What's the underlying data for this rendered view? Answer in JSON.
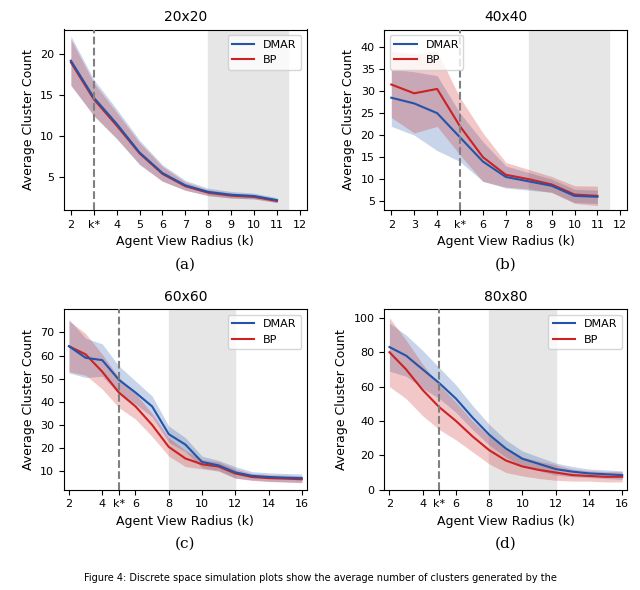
{
  "chart_data": [
    {
      "type": "line",
      "title": "20x20",
      "label": "(a)",
      "x_label": "Agent View Radius (k)",
      "y_label": "Average Cluster Count",
      "x": [
        2,
        3,
        4,
        5,
        6,
        7,
        8,
        9,
        10,
        11
      ],
      "series": [
        {
          "name": "DMAR",
          "color": "#2255aa",
          "values": [
            19.2,
            14.7,
            11.5,
            8.0,
            5.5,
            4.0,
            3.2,
            2.85,
            2.7,
            2.2
          ],
          "std": [
            3.0,
            2.2,
            1.8,
            1.5,
            1.0,
            0.6,
            0.45,
            0.4,
            0.35,
            0.3
          ]
        },
        {
          "name": "BP",
          "color": "#cc2222",
          "values": [
            19.0,
            14.5,
            11.3,
            7.9,
            5.4,
            3.9,
            3.1,
            2.75,
            2.6,
            2.1
          ],
          "std": [
            2.8,
            2.0,
            1.6,
            1.3,
            0.9,
            0.5,
            0.35,
            0.3,
            0.25,
            0.2
          ]
        }
      ],
      "reference_x": 3,
      "shaded_region": [
        8,
        11.5
      ],
      "xlim": [
        1.7,
        12.3
      ],
      "xticks": [
        2,
        {
          "value": 3,
          "label": "k*"
        },
        4,
        5,
        6,
        7,
        8,
        9,
        10,
        11,
        12
      ],
      "ylim": [
        1,
        23
      ],
      "yticks": [
        5,
        10,
        15,
        20
      ],
      "legend": "upper right",
      "grid": false
    },
    {
      "type": "line",
      "title": "40x40",
      "label": "(b)",
      "x_label": "Agent View Radius (k)",
      "y_label": "Average Cluster Count",
      "x": [
        2,
        3,
        4,
        5,
        6,
        7,
        8,
        9,
        10,
        11
      ],
      "series": [
        {
          "name": "DMAR",
          "color": "#2255aa",
          "values": [
            28.5,
            27.2,
            25.0,
            19.5,
            14.0,
            10.5,
            9.5,
            8.5,
            6.2,
            6.0
          ],
          "std": [
            6.5,
            7.2,
            8.5,
            5.5,
            4.5,
            2.5,
            2.0,
            1.5,
            1.5,
            1.5
          ]
        },
        {
          "name": "BP",
          "color": "#cc2222",
          "values": [
            31.5,
            29.5,
            30.5,
            22.0,
            15.0,
            11.0,
            10.0,
            8.8,
            6.5,
            6.2
          ],
          "std": [
            7.5,
            9.0,
            8.5,
            6.5,
            5.5,
            2.8,
            2.2,
            1.8,
            2.0,
            2.2
          ]
        }
      ],
      "reference_x": 5,
      "shaded_region": [
        8,
        11.5
      ],
      "xlim": [
        1.7,
        12.3
      ],
      "xticks": [
        2,
        3,
        4,
        {
          "value": 5,
          "label": "k*"
        },
        6,
        7,
        8,
        9,
        10,
        11,
        12
      ],
      "ylim": [
        3,
        44
      ],
      "yticks": [
        5,
        10,
        15,
        20,
        25,
        30,
        35,
        40
      ],
      "legend": "upper left",
      "grid": false
    },
    {
      "type": "line",
      "title": "60x60",
      "label": "(c)",
      "x_label": "Agent View Radius (k)",
      "y_label": "Average Cluster Count",
      "x": [
        2,
        3,
        4,
        5,
        6,
        7,
        8,
        9,
        10,
        11,
        12,
        13,
        14,
        15,
        16
      ],
      "series": [
        {
          "name": "DMAR",
          "color": "#2255aa",
          "values": [
            64.0,
            59.0,
            58.0,
            49.5,
            44.0,
            38.0,
            26.0,
            21.5,
            14.0,
            12.5,
            9.5,
            8.0,
            7.5,
            7.2,
            7.0
          ],
          "std": [
            11.5,
            8.5,
            7.0,
            6.0,
            5.0,
            4.5,
            3.5,
            3.0,
            2.5,
            2.2,
            2.5,
            1.8,
            1.8,
            1.8,
            1.8
          ]
        },
        {
          "name": "BP",
          "color": "#cc2222",
          "values": [
            64.0,
            60.5,
            53.0,
            44.0,
            38.0,
            30.0,
            20.5,
            15.5,
            13.0,
            12.0,
            9.0,
            7.5,
            7.0,
            6.8,
            6.5
          ],
          "std": [
            11.0,
            9.0,
            7.5,
            6.5,
            5.5,
            5.0,
            4.0,
            3.5,
            2.0,
            2.0,
            2.0,
            1.5,
            1.5,
            1.5,
            1.5
          ]
        }
      ],
      "reference_x": 5,
      "shaded_region": [
        8,
        12
      ],
      "xlim": [
        1.7,
        16.3
      ],
      "xticks": [
        2,
        4,
        {
          "value": 5,
          "label": "k*"
        },
        6,
        8,
        10,
        12,
        14,
        16
      ],
      "ylim": [
        2,
        80
      ],
      "yticks": [
        10,
        20,
        30,
        40,
        50,
        60,
        70
      ],
      "legend": "upper right",
      "grid": false
    },
    {
      "type": "line",
      "title": "80x80",
      "label": "(d)",
      "x_label": "Agent View Radius (k)",
      "y_label": "Average Cluster Count",
      "x": [
        2,
        3,
        4,
        5,
        6,
        7,
        8,
        9,
        10,
        11,
        12,
        13,
        14,
        15,
        16
      ],
      "series": [
        {
          "name": "DMAR",
          "color": "#2255aa",
          "values": [
            83.0,
            78.0,
            70.0,
            62.0,
            53.0,
            42.0,
            32.0,
            24.0,
            18.0,
            15.0,
            12.0,
            10.5,
            9.5,
            9.0,
            8.5
          ],
          "std": [
            14.0,
            12.0,
            11.0,
            9.0,
            8.0,
            7.0,
            6.0,
            5.0,
            4.5,
            4.0,
            3.5,
            3.0,
            2.5,
            2.5,
            2.5
          ]
        },
        {
          "name": "BP",
          "color": "#cc2222",
          "values": [
            80.0,
            70.0,
            58.0,
            48.0,
            40.0,
            31.0,
            23.0,
            17.0,
            13.5,
            11.5,
            10.0,
            8.5,
            8.0,
            7.5,
            7.5
          ],
          "std": [
            20.0,
            17.0,
            15.0,
            13.0,
            11.0,
            9.0,
            8.0,
            7.0,
            5.5,
            5.0,
            4.5,
            3.5,
            3.0,
            3.0,
            3.0
          ]
        }
      ],
      "reference_x": 5,
      "shaded_region": [
        8,
        12
      ],
      "xlim": [
        1.7,
        16.3
      ],
      "xticks": [
        2,
        4,
        {
          "value": 5,
          "label": "k*"
        },
        6,
        8,
        10,
        12,
        14,
        16
      ],
      "ylim": [
        0,
        105
      ],
      "yticks": [
        0,
        20,
        40,
        60,
        80,
        100
      ],
      "legend": "upper right",
      "grid": false
    }
  ],
  "caption": "Figure 4: Discrete space simulation plots show the average number of clusters generated by the"
}
